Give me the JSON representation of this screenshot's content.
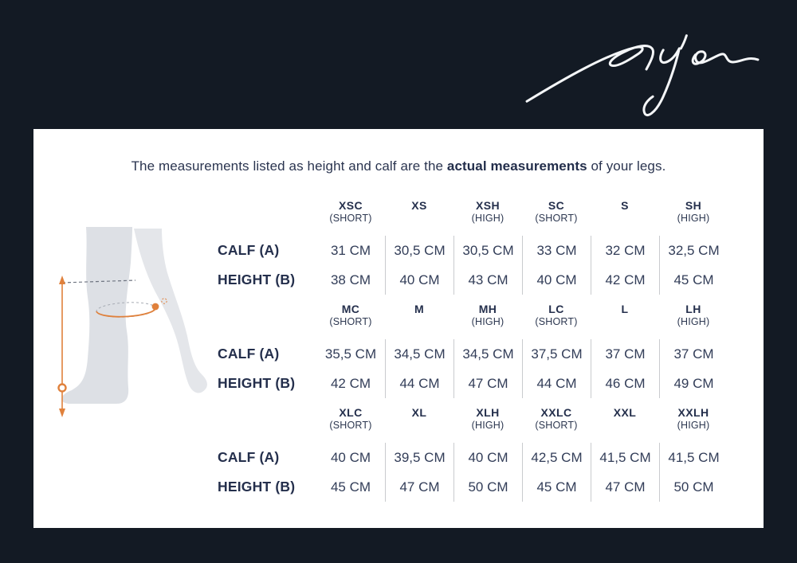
{
  "colors": {
    "background": "#131a24",
    "card": "#ffffff",
    "text_navy": "#242f4c",
    "accent_orange": "#e0813c",
    "divider_gray": "#c9cbce",
    "leg_gray": "#dde0e5"
  },
  "logo": {
    "text": "Dy'on"
  },
  "intro": {
    "prefix": "The measurements listed as height and calf are the ",
    "bold": "actual measurements",
    "suffix": " of your legs."
  },
  "row_labels": {
    "calf": "CALF (A)",
    "height": "HEIGHT (B)"
  },
  "figure": {
    "description": "leg-with-boot-measurement-illustration",
    "marker_a": "calf-circumference-A",
    "marker_b": "boot-height-B"
  },
  "tables": [
    {
      "columns": [
        {
          "code": "XSC",
          "sub": "(SHORT)"
        },
        {
          "code": "XS",
          "sub": ""
        },
        {
          "code": "XSH",
          "sub": "(HIGH)"
        },
        {
          "code": "SC",
          "sub": "(SHORT)"
        },
        {
          "code": "S",
          "sub": ""
        },
        {
          "code": "SH",
          "sub": "(HIGH)"
        }
      ],
      "calf": [
        "31 CM",
        "30,5 CM",
        "30,5 CM",
        "33 CM",
        "32 CM",
        "32,5 CM"
      ],
      "height": [
        "38 CM",
        "40 CM",
        "43 CM",
        "40 CM",
        "42 CM",
        "45 CM"
      ]
    },
    {
      "columns": [
        {
          "code": "MC",
          "sub": "(SHORT)"
        },
        {
          "code": "M",
          "sub": ""
        },
        {
          "code": "MH",
          "sub": "(HIGH)"
        },
        {
          "code": "LC",
          "sub": "(SHORT)"
        },
        {
          "code": "L",
          "sub": ""
        },
        {
          "code": "LH",
          "sub": "(HIGH)"
        }
      ],
      "calf": [
        "35,5 CM",
        "34,5 CM",
        "34,5 CM",
        "37,5 CM",
        "37 CM",
        "37 CM"
      ],
      "height": [
        "42 CM",
        "44 CM",
        "47 CM",
        "44 CM",
        "46 CM",
        "49 CM"
      ]
    },
    {
      "columns": [
        {
          "code": "XLC",
          "sub": "(SHORT)"
        },
        {
          "code": "XL",
          "sub": ""
        },
        {
          "code": "XLH",
          "sub": "(HIGH)"
        },
        {
          "code": "XXLC",
          "sub": "(SHORT)"
        },
        {
          "code": "XXL",
          "sub": ""
        },
        {
          "code": "XXLH",
          "sub": "(HIGH)"
        }
      ],
      "calf": [
        "40 CM",
        "39,5 CM",
        "40 CM",
        "42,5 CM",
        "41,5 CM",
        "41,5 CM"
      ],
      "height": [
        "45 CM",
        "47 CM",
        "50 CM",
        "45 CM",
        "47 CM",
        "50 CM"
      ]
    }
  ]
}
